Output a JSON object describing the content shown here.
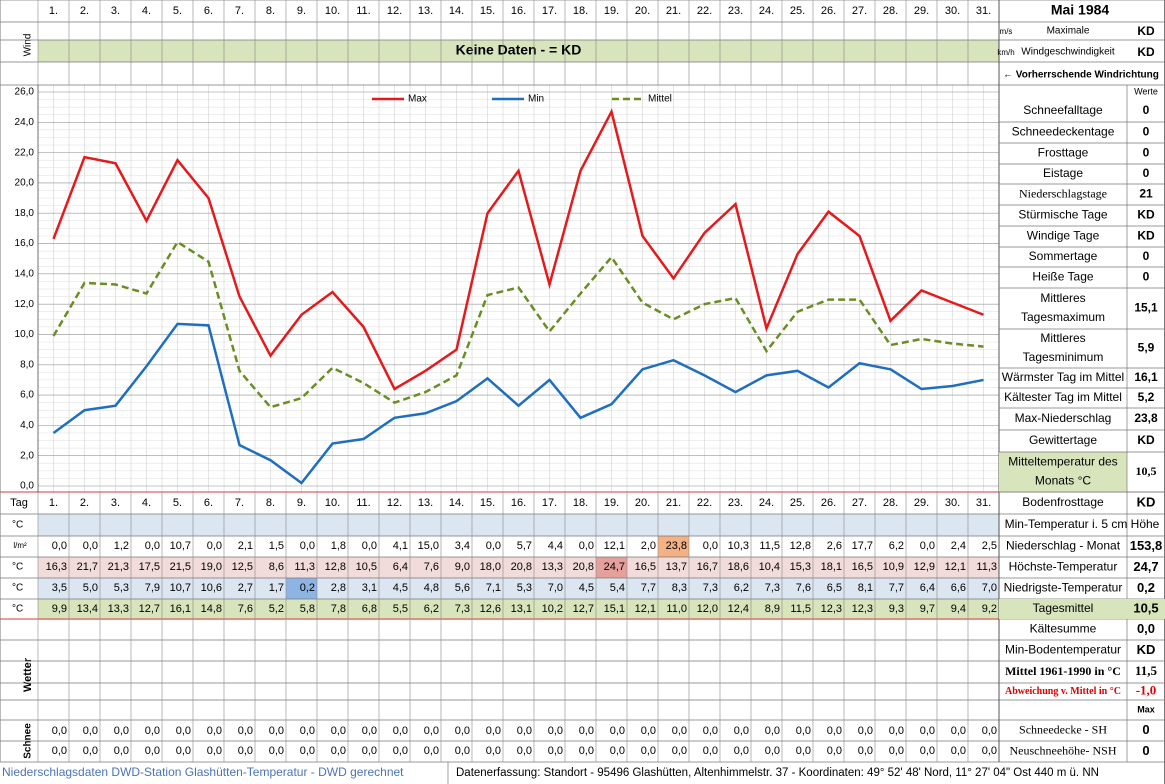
{
  "header": {
    "month": "Mai 1984"
  },
  "wind": {
    "label": "Wind",
    "message": "Keine Daten -  = KD",
    "units": [
      "m/s",
      "km/h"
    ],
    "max_label": [
      "Maximale",
      "Windgeschwindigkeit"
    ],
    "max_values": [
      "KD",
      "KD"
    ],
    "direction": "← Vorherrschende Windrichtung"
  },
  "chart_data": {
    "type": "line",
    "categories": [
      "1.",
      "2.",
      "3.",
      "4.",
      "5.",
      "6.",
      "7.",
      "8.",
      "9.",
      "10.",
      "11.",
      "12.",
      "13.",
      "14.",
      "15.",
      "16.",
      "17.",
      "18.",
      "19.",
      "20.",
      "21.",
      "22.",
      "23.",
      "24.",
      "25.",
      "26.",
      "27.",
      "28.",
      "29.",
      "30.",
      "31."
    ],
    "ylim": [
      0,
      26
    ],
    "yticks": [
      {
        "value": 0,
        "label": "0,0"
      },
      {
        "value": 2,
        "label": "2,0"
      },
      {
        "value": 4,
        "label": "4,0"
      },
      {
        "value": 6,
        "label": "6,0"
      },
      {
        "value": 8,
        "label": "8,0"
      },
      {
        "value": 10,
        "label": "10,0"
      },
      {
        "value": 12,
        "label": "12,0"
      },
      {
        "value": 14,
        "label": "14,0"
      },
      {
        "value": 16,
        "label": "16,0"
      },
      {
        "value": 18,
        "label": "18,0"
      },
      {
        "value": 20,
        "label": "20,0"
      },
      {
        "value": 22,
        "label": "22,0"
      },
      {
        "value": 24,
        "label": "24,0"
      },
      {
        "value": 26,
        "label": "26,0"
      }
    ],
    "grid": true,
    "series": [
      {
        "name": "Max",
        "color": "#e41a1c",
        "dashed": false,
        "values": [
          16.3,
          21.7,
          21.3,
          17.5,
          21.5,
          19.0,
          12.5,
          8.6,
          11.3,
          12.8,
          10.5,
          6.4,
          7.6,
          9.0,
          18.0,
          20.8,
          13.3,
          20.8,
          24.7,
          16.5,
          13.7,
          16.7,
          18.6,
          10.4,
          15.3,
          18.1,
          16.5,
          10.9,
          12.9,
          12.1,
          11.3
        ],
        "value_labels": [
          "16,3",
          "21,7",
          "21,3",
          "17,5",
          "21,5",
          "19,0",
          "12,5",
          "8,6",
          "11,3",
          "12,8",
          "10,5",
          "6,4",
          "7,6",
          "9,0",
          "18,0",
          "20,8",
          "13,3",
          "20,8",
          "24,7",
          "16,5",
          "13,7",
          "16,7",
          "18,6",
          "10,4",
          "15,3",
          "18,1",
          "16,5",
          "10,9",
          "12,9",
          "12,1",
          "11,3"
        ]
      },
      {
        "name": "Min",
        "color": "#1f6fc0",
        "dashed": false,
        "values": [
          3.5,
          5.0,
          5.3,
          7.9,
          10.7,
          10.6,
          2.7,
          1.7,
          0.2,
          2.8,
          3.1,
          4.5,
          4.8,
          5.6,
          7.1,
          5.3,
          7.0,
          4.5,
          5.4,
          7.7,
          8.3,
          7.3,
          6.2,
          7.3,
          7.6,
          6.5,
          8.1,
          7.7,
          6.4,
          6.6,
          7.0
        ],
        "value_labels": [
          "3,5",
          "5,0",
          "5,3",
          "7,9",
          "10,7",
          "10,6",
          "2,7",
          "1,7",
          "0,2",
          "2,8",
          "3,1",
          "4,5",
          "4,8",
          "5,6",
          "7,1",
          "5,3",
          "7,0",
          "4,5",
          "5,4",
          "7,7",
          "8,3",
          "7,3",
          "6,2",
          "7,3",
          "7,6",
          "6,5",
          "8,1",
          "7,7",
          "6,4",
          "6,6",
          "7,0"
        ]
      },
      {
        "name": "Mittel",
        "color": "#6b8e23",
        "dashed": true,
        "values": [
          9.9,
          13.4,
          13.3,
          12.7,
          16.1,
          14.8,
          7.6,
          5.2,
          5.8,
          7.8,
          6.8,
          5.5,
          6.2,
          7.3,
          12.6,
          13.1,
          10.2,
          12.7,
          15.1,
          12.1,
          11.0,
          12.0,
          12.4,
          8.9,
          11.5,
          12.3,
          12.3,
          9.3,
          9.7,
          9.4,
          9.2
        ],
        "value_labels": [
          "9,9",
          "13,4",
          "13,3",
          "12,7",
          "16,1",
          "14,8",
          "7,6",
          "5,2",
          "5,8",
          "7,8",
          "6,8",
          "5,5",
          "6,2",
          "7,3",
          "12,6",
          "13,1",
          "10,2",
          "12,7",
          "15,1",
          "12,1",
          "11,0",
          "12,0",
          "12,4",
          "8,9",
          "11,5",
          "12,3",
          "12,3",
          "9,3",
          "9,7",
          "9,4",
          "9,2"
        ]
      }
    ]
  },
  "stats": {
    "header": "Werte",
    "rows": [
      {
        "label": [
          "Schneefalltage"
        ],
        "value": "0"
      },
      {
        "label": [
          "Schneedeckentage"
        ],
        "value": "0"
      },
      {
        "label": [
          "Frosttage"
        ],
        "value": "0"
      },
      {
        "label": [
          "Eistage"
        ],
        "value": "0"
      },
      {
        "label": [
          "Niederschlagstage"
        ],
        "value": "21"
      },
      {
        "label": [
          "Stürmische Tage"
        ],
        "value": "KD"
      },
      {
        "label": [
          "Windige Tage"
        ],
        "value": "KD"
      },
      {
        "label": [
          "Sommertage"
        ],
        "value": "0"
      },
      {
        "label": [
          "Heiße Tage"
        ],
        "value": "0"
      },
      {
        "label": [
          "Mittleres",
          "Tagesmaximum"
        ],
        "value": "15,1"
      },
      {
        "label": [
          "Mittleres",
          "Tagesminimum"
        ],
        "value": "5,9"
      },
      {
        "label": [
          "Wärmster Tag im Mittel"
        ],
        "value": "16,1"
      },
      {
        "label": [
          "Kältester Tag im Mittel"
        ],
        "value": "5,2"
      },
      {
        "label": [
          "Max-Niederschlag"
        ],
        "value": "23,8"
      },
      {
        "label": [
          "Gewittertage"
        ],
        "value": "KD"
      },
      {
        "label": [
          "Mitteltemperatur des",
          "Monats °C"
        ],
        "value": "10,5"
      }
    ]
  },
  "table": {
    "day_label": "Tag",
    "temp_unit": "°C",
    "precip": {
      "unit": "l/m²",
      "values": [
        "0,0",
        "0,0",
        "1,2",
        "0,0",
        "10,7",
        "0,0",
        "2,1",
        "1,5",
        "0,0",
        "1,8",
        "0,0",
        "4,1",
        "15,0",
        "3,4",
        "0,0",
        "5,7",
        "4,4",
        "0,0",
        "12,1",
        "2,0",
        "23,8",
        "0,0",
        "10,3",
        "11,5",
        "12,8",
        "2,6",
        "17,7",
        "6,2",
        "0,0",
        "2,4",
        "2,5"
      ]
    },
    "weather_label": "Wetter",
    "snow_label": "Schnee",
    "snow_rows": [
      [
        "0,0",
        "0,0",
        "0,0",
        "0,0",
        "0,0",
        "0,0",
        "0,0",
        "0,0",
        "0,0",
        "0,0",
        "0,0",
        "0,0",
        "0,0",
        "0,0",
        "0,0",
        "0,0",
        "0,0",
        "0,0",
        "0,0",
        "0,0",
        "0,0",
        "0,0",
        "0,0",
        "0,0",
        "0,0",
        "0,0",
        "0,0",
        "0,0",
        "0,0",
        "0,0",
        "0,0"
      ],
      [
        "0,0",
        "0,0",
        "0,0",
        "0,0",
        "0,0",
        "0,0",
        "0,0",
        "0,0",
        "0,0",
        "0,0",
        "0,0",
        "0,0",
        "0,0",
        "0,0",
        "0,0",
        "0,0",
        "0,0",
        "0,0",
        "0,0",
        "0,0",
        "0,0",
        "0,0",
        "0,0",
        "0,0",
        "0,0",
        "0,0",
        "0,0",
        "0,0",
        "0,0",
        "0,0",
        "0,0"
      ]
    ],
    "summary": [
      {
        "label": "Bodenfrosttage",
        "value": "KD"
      },
      {
        "label": "Min-Temperatur i. 5 cm Höhe"
      },
      {
        "label": "Niederschlag - Monat",
        "value": "153,8"
      },
      {
        "label": "Höchste-Temperatur",
        "value": "24,7"
      },
      {
        "label": "Niedrigste-Temperatur",
        "value": "0,2"
      },
      {
        "label": "Tagesmittel",
        "value": "10,5"
      },
      {
        "label": "Kältesumme",
        "value": "0,0"
      },
      {
        "label": "Min-Bodentemperatur",
        "value": "KD"
      },
      {
        "label": "Mittel 1961-1990 in °C",
        "value": "11,5"
      },
      {
        "label": "Abweichung v. Mittel in °C",
        "value": "-1,0"
      },
      {
        "value": "Max"
      },
      {
        "label": "Schneedecke -  SH",
        "value": "0"
      },
      {
        "label": "Neuschneehöhe- NSH",
        "value": "0"
      }
    ]
  },
  "footer": {
    "left": "Niederschlagsdaten DWD-Station Glashütten-Temperatur -  DWD gerechnet",
    "right": "Datenerfassung: Standort -  95496 Glashütten, Altenhimmelstr. 37 - Koordinaten:  49° 52' 48' Nord,    11° 27' 04\" Ost   440 m ü. NN"
  }
}
